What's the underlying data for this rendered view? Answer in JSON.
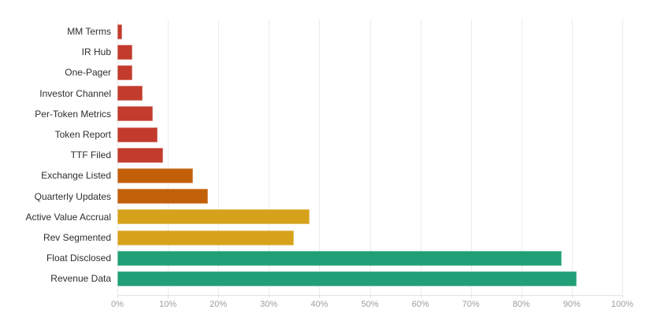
{
  "chart_data": {
    "type": "bar",
    "orientation": "horizontal",
    "title": "",
    "xlabel": "",
    "ylabel": "",
    "xlim": [
      0,
      100
    ],
    "x_tick_labels": [
      "0%",
      "10%",
      "20%",
      "30%",
      "40%",
      "50%",
      "60%",
      "70%",
      "80%",
      "90%",
      "100%"
    ],
    "x_tick_values": [
      0,
      10,
      20,
      30,
      40,
      50,
      60,
      70,
      80,
      90,
      100
    ],
    "grid": true,
    "legend": false,
    "categories": [
      "MM Terms",
      "IR Hub",
      "One-Pager",
      "Investor Channel",
      "Per-Token Metrics",
      "Token Report",
      "TTF Filed",
      "Exchange Listed",
      "Quarterly Updates",
      "Active Value Accrual",
      "Rev Segmented",
      "Float Disclosed",
      "Revenue Data"
    ],
    "values": [
      1,
      3,
      3,
      5,
      7,
      8,
      9,
      15,
      18,
      38,
      35,
      88,
      91
    ],
    "bar_colors": [
      "#c23b2c",
      "#c23b2c",
      "#c23b2c",
      "#c23b2c",
      "#c23b2c",
      "#c23b2c",
      "#c23b2c",
      "#c2600a",
      "#c2600a",
      "#d7a21b",
      "#d7a21b",
      "#21a077",
      "#21a077"
    ]
  },
  "style": {
    "gridline_color": "#ececec",
    "axis_line_color": "#e3e3e3",
    "tick_label_color": "#9e9e9e",
    "category_label_color": "#2e2e2e",
    "background_color": "#ffffff"
  }
}
